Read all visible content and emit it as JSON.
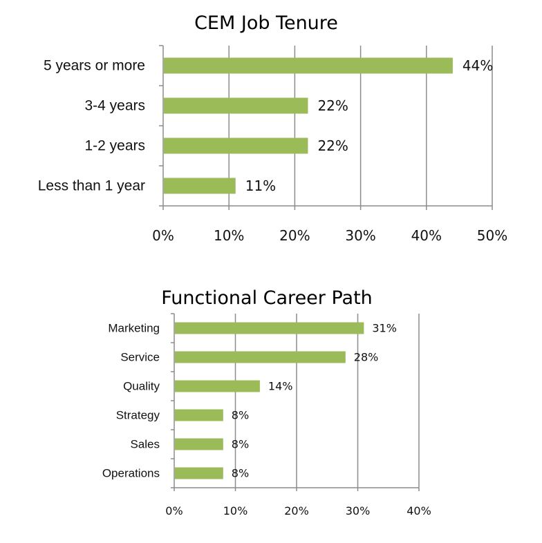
{
  "colors": {
    "bar": "#9bbb59",
    "grid": "#8c8c8c",
    "axis": "#8c8c8c",
    "text": "#111111"
  },
  "chart_data": [
    {
      "type": "bar",
      "orientation": "horizontal",
      "title": "CEM Job Tenure",
      "categories": [
        "5 years or more",
        "3-4 years",
        "1-2 years",
        "Less than 1 year"
      ],
      "values": [
        44,
        22,
        22,
        11
      ],
      "data_labels": [
        "44%",
        "22%",
        "22%",
        "11%"
      ],
      "xlim": [
        0,
        50
      ],
      "xticks": [
        "0%",
        "10%",
        "20%",
        "30%",
        "40%",
        "50%"
      ],
      "grid": true,
      "legend": "none"
    },
    {
      "type": "bar",
      "orientation": "horizontal",
      "title": "Functional Career Path",
      "categories": [
        "Marketing",
        "Service",
        "Quality",
        "Strategy",
        "Sales",
        "Operations"
      ],
      "values": [
        31,
        28,
        14,
        8,
        8,
        8
      ],
      "data_labels": [
        "31%",
        "28%",
        "14%",
        "8%",
        "8%",
        "8%"
      ],
      "xlim": [
        0,
        40
      ],
      "xticks": [
        "0%",
        "10%",
        "20%",
        "30%",
        "40%"
      ],
      "grid": true,
      "legend": "none"
    }
  ]
}
